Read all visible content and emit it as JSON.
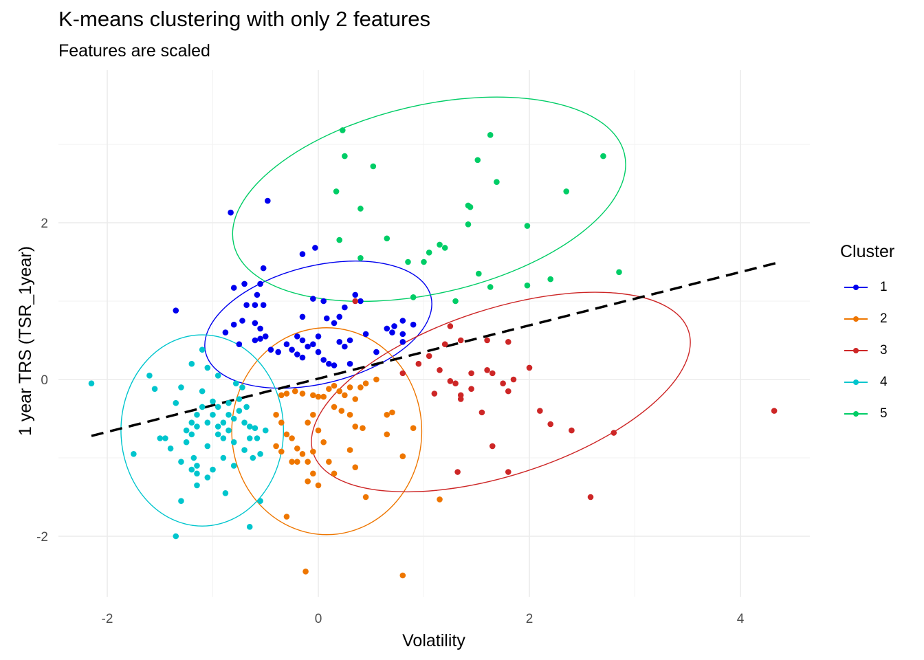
{
  "chart_data": {
    "type": "scatter",
    "title": "K-means clustering with only 2 features",
    "subtitle": "Features are scaled",
    "xlabel": "Volatility",
    "ylabel": "1 year TRS (TSR_1year)",
    "xlim": [
      -2.5,
      4.65
    ],
    "ylim": [
      -2.8,
      3.9
    ],
    "x_ticks": [
      -2,
      0,
      2,
      4
    ],
    "y_ticks": [
      -2,
      0,
      2
    ],
    "grid": true,
    "legend_position": "right",
    "legend_title": "Cluster",
    "trend_line": {
      "style": "dashed",
      "color": "#000000",
      "points": [
        [
          -2.15,
          -0.72
        ],
        [
          4.35,
          1.49
        ]
      ]
    },
    "series": [
      {
        "name": "1",
        "color": "#0000ee",
        "ellipse": {
          "center": [
            0.0,
            0.7
          ],
          "rx": 1.1,
          "ry": 0.75,
          "rotation_deg": -14
        },
        "points": [
          [
            -0.83,
            2.13
          ],
          [
            -0.48,
            2.28
          ],
          [
            -1.35,
            0.88
          ],
          [
            -0.8,
            1.17
          ],
          [
            -0.7,
            1.22
          ],
          [
            -0.55,
            1.22
          ],
          [
            -0.52,
            1.42
          ],
          [
            -0.58,
            1.08
          ],
          [
            -0.68,
            0.95
          ],
          [
            -0.6,
            0.95
          ],
          [
            -0.52,
            0.95
          ],
          [
            -0.72,
            0.75
          ],
          [
            -0.8,
            0.7
          ],
          [
            -0.6,
            0.72
          ],
          [
            -0.55,
            0.65
          ],
          [
            -0.88,
            0.6
          ],
          [
            -0.75,
            0.45
          ],
          [
            -0.6,
            0.5
          ],
          [
            -0.55,
            0.52
          ],
          [
            -0.5,
            0.55
          ],
          [
            -0.45,
            0.38
          ],
          [
            -0.38,
            0.35
          ],
          [
            -0.3,
            0.45
          ],
          [
            -0.25,
            0.38
          ],
          [
            -0.2,
            0.32
          ],
          [
            -0.15,
            0.28
          ],
          [
            -0.1,
            0.42
          ],
          [
            -0.05,
            0.45
          ],
          [
            0.0,
            0.35
          ],
          [
            0.05,
            0.25
          ],
          [
            -0.2,
            0.55
          ],
          [
            -0.15,
            0.5
          ],
          [
            -0.15,
            0.8
          ],
          [
            -0.15,
            1.6
          ],
          [
            -0.05,
            1.03
          ],
          [
            0.05,
            1.0
          ],
          [
            -0.03,
            1.68
          ],
          [
            0.0,
            0.55
          ],
          [
            0.1,
            0.2
          ],
          [
            0.15,
            0.18
          ],
          [
            0.08,
            0.78
          ],
          [
            0.15,
            0.72
          ],
          [
            0.2,
            0.8
          ],
          [
            0.25,
            0.92
          ],
          [
            0.2,
            0.48
          ],
          [
            0.25,
            0.42
          ],
          [
            0.3,
            0.5
          ],
          [
            0.35,
            1.08
          ],
          [
            0.4,
            1.0
          ],
          [
            0.45,
            0.58
          ],
          [
            0.55,
            0.35
          ],
          [
            0.3,
            0.2
          ],
          [
            0.65,
            0.65
          ],
          [
            0.7,
            0.6
          ],
          [
            0.72,
            0.68
          ],
          [
            0.8,
            0.58
          ],
          [
            0.8,
            0.75
          ],
          [
            0.8,
            0.48
          ],
          [
            0.9,
            0.7
          ]
        ]
      },
      {
        "name": "2",
        "color": "#ee7600",
        "ellipse": {
          "center": [
            0.08,
            -0.66
          ],
          "rx": 0.9,
          "ry": 1.32,
          "rotation_deg": 0
        },
        "points": [
          [
            -0.35,
            -0.2
          ],
          [
            -0.3,
            -0.18
          ],
          [
            -0.22,
            -0.15
          ],
          [
            -0.15,
            -0.18
          ],
          [
            -0.05,
            -0.2
          ],
          [
            0.0,
            -0.22
          ],
          [
            0.05,
            -0.22
          ],
          [
            0.1,
            -0.12
          ],
          [
            0.15,
            -0.08
          ],
          [
            0.2,
            -0.15
          ],
          [
            0.25,
            -0.2
          ],
          [
            0.3,
            -0.1
          ],
          [
            0.35,
            -0.25
          ],
          [
            0.4,
            -0.1
          ],
          [
            0.45,
            -0.05
          ],
          [
            0.55,
            0.0
          ],
          [
            0.65,
            -0.45
          ],
          [
            0.7,
            -0.42
          ],
          [
            0.15,
            -0.35
          ],
          [
            0.22,
            -0.4
          ],
          [
            0.3,
            -0.45
          ],
          [
            0.35,
            -0.6
          ],
          [
            0.42,
            -0.62
          ],
          [
            -0.4,
            -0.45
          ],
          [
            -0.35,
            -0.55
          ],
          [
            -0.3,
            -0.7
          ],
          [
            -0.25,
            -0.75
          ],
          [
            -0.2,
            -0.88
          ],
          [
            -0.15,
            -0.95
          ],
          [
            -0.05,
            -0.92
          ],
          [
            0.0,
            -0.65
          ],
          [
            0.05,
            -0.8
          ],
          [
            -0.4,
            -0.85
          ],
          [
            -0.35,
            -0.92
          ],
          [
            -0.25,
            -1.05
          ],
          [
            -0.1,
            -1.05
          ],
          [
            -0.05,
            -1.2
          ],
          [
            -0.1,
            -1.3
          ],
          [
            -0.2,
            -1.05
          ],
          [
            0.1,
            -1.05
          ],
          [
            0.15,
            -1.2
          ],
          [
            0.3,
            -0.9
          ],
          [
            0.35,
            -1.12
          ],
          [
            0.45,
            -1.5
          ],
          [
            -0.05,
            -0.45
          ],
          [
            -0.1,
            -0.55
          ],
          [
            -0.3,
            -1.75
          ],
          [
            0.65,
            -0.7
          ],
          [
            0.8,
            -0.98
          ],
          [
            0.9,
            -0.62
          ],
          [
            1.15,
            -1.53
          ],
          [
            -0.12,
            -2.45
          ],
          [
            0.8,
            -2.5
          ],
          [
            0.0,
            -1.35
          ]
        ]
      },
      {
        "name": "3",
        "color": "#cd2626",
        "ellipse": {
          "center": [
            1.73,
            -0.16
          ],
          "rx": 1.87,
          "ry": 1.06,
          "rotation_deg": -18
        },
        "points": [
          [
            0.35,
            1.0
          ],
          [
            1.25,
            0.68
          ],
          [
            1.35,
            0.5
          ],
          [
            1.2,
            0.45
          ],
          [
            1.6,
            0.5
          ],
          [
            1.8,
            0.48
          ],
          [
            0.8,
            0.08
          ],
          [
            0.95,
            0.2
          ],
          [
            1.05,
            0.3
          ],
          [
            1.15,
            0.12
          ],
          [
            1.25,
            -0.02
          ],
          [
            1.3,
            -0.05
          ],
          [
            1.35,
            -0.2
          ],
          [
            1.35,
            -0.25
          ],
          [
            1.45,
            -0.12
          ],
          [
            1.45,
            0.08
          ],
          [
            1.6,
            0.12
          ],
          [
            1.65,
            0.08
          ],
          [
            1.75,
            -0.05
          ],
          [
            1.8,
            -0.15
          ],
          [
            1.85,
            0.0
          ],
          [
            2.0,
            0.15
          ],
          [
            1.1,
            -0.18
          ],
          [
            1.55,
            -0.42
          ],
          [
            1.65,
            -0.85
          ],
          [
            1.32,
            -1.18
          ],
          [
            1.8,
            -1.18
          ],
          [
            2.1,
            -0.4
          ],
          [
            2.2,
            -0.57
          ],
          [
            2.4,
            -0.65
          ],
          [
            2.8,
            -0.68
          ],
          [
            2.58,
            -1.5
          ],
          [
            4.32,
            -0.4
          ]
        ]
      },
      {
        "name": "4",
        "color": "#00c5cd",
        "ellipse": {
          "center": [
            -1.1,
            -0.65
          ],
          "rx": 0.77,
          "ry": 1.22,
          "rotation_deg": 0
        },
        "points": [
          [
            -2.15,
            -0.05
          ],
          [
            -1.75,
            -0.95
          ],
          [
            -1.6,
            0.05
          ],
          [
            -1.55,
            -0.12
          ],
          [
            -1.5,
            -0.75
          ],
          [
            -1.45,
            -0.75
          ],
          [
            -1.4,
            -0.88
          ],
          [
            -1.35,
            -0.3
          ],
          [
            -1.3,
            -0.1
          ],
          [
            -1.3,
            -1.05
          ],
          [
            -1.25,
            -0.65
          ],
          [
            -1.25,
            -0.8
          ],
          [
            -1.2,
            -0.55
          ],
          [
            -1.2,
            -0.7
          ],
          [
            -1.18,
            -1.0
          ],
          [
            -1.15,
            -0.45
          ],
          [
            -1.15,
            -0.6
          ],
          [
            -1.15,
            -1.1
          ],
          [
            -1.15,
            -1.2
          ],
          [
            -1.1,
            -0.15
          ],
          [
            -1.1,
            -0.35
          ],
          [
            -1.05,
            -0.55
          ],
          [
            -1.05,
            -0.85
          ],
          [
            -1.0,
            -0.28
          ],
          [
            -1.0,
            -0.45
          ],
          [
            -0.95,
            -0.35
          ],
          [
            -0.95,
            -0.6
          ],
          [
            -0.95,
            -0.7
          ],
          [
            -0.9,
            -0.55
          ],
          [
            -0.9,
            -0.75
          ],
          [
            -0.9,
            -1.0
          ],
          [
            -0.85,
            -0.3
          ],
          [
            -0.85,
            -0.45
          ],
          [
            -0.85,
            -0.65
          ],
          [
            -0.8,
            -0.5
          ],
          [
            -0.8,
            -0.8
          ],
          [
            -0.8,
            -1.1
          ],
          [
            -0.75,
            -0.25
          ],
          [
            -0.75,
            -0.4
          ],
          [
            -0.7,
            -0.55
          ],
          [
            -0.7,
            -0.9
          ],
          [
            -0.68,
            -0.35
          ],
          [
            -0.65,
            -0.6
          ],
          [
            -0.65,
            -0.75
          ],
          [
            -0.62,
            -1.0
          ],
          [
            -0.6,
            -0.62
          ],
          [
            -0.58,
            -0.75
          ],
          [
            -0.55,
            -0.95
          ],
          [
            -0.5,
            -0.65
          ],
          [
            -0.72,
            -0.1
          ],
          [
            -0.78,
            -0.05
          ],
          [
            -1.05,
            -1.25
          ],
          [
            -1.15,
            -1.35
          ],
          [
            -1.2,
            -1.15
          ],
          [
            -1.3,
            -1.55
          ],
          [
            -1.0,
            -1.15
          ],
          [
            -0.88,
            -1.45
          ],
          [
            -0.65,
            -1.88
          ],
          [
            -0.55,
            -1.55
          ],
          [
            -1.35,
            -2.0
          ],
          [
            -1.1,
            0.38
          ],
          [
            -1.05,
            0.15
          ],
          [
            -1.2,
            0.2
          ],
          [
            -0.95,
            0.05
          ]
        ]
      },
      {
        "name": "5",
        "color": "#00cd66",
        "ellipse": {
          "center": [
            1.05,
            2.3
          ],
          "rx": 1.9,
          "ry": 1.2,
          "rotation_deg": -13
        },
        "points": [
          [
            0.23,
            3.18
          ],
          [
            0.25,
            2.85
          ],
          [
            0.52,
            2.72
          ],
          [
            0.17,
            2.4
          ],
          [
            0.4,
            2.18
          ],
          [
            1.63,
            3.12
          ],
          [
            1.51,
            2.8
          ],
          [
            1.69,
            2.52
          ],
          [
            2.7,
            2.85
          ],
          [
            2.35,
            2.4
          ],
          [
            1.42,
            2.22
          ],
          [
            1.44,
            2.2
          ],
          [
            1.42,
            1.98
          ],
          [
            1.98,
            1.96
          ],
          [
            0.2,
            1.78
          ],
          [
            0.65,
            1.8
          ],
          [
            1.15,
            1.72
          ],
          [
            1.2,
            1.68
          ],
          [
            1.05,
            1.62
          ],
          [
            0.85,
            1.5
          ],
          [
            1.0,
            1.5
          ],
          [
            0.4,
            1.55
          ],
          [
            1.52,
            1.35
          ],
          [
            1.63,
            1.18
          ],
          [
            1.98,
            1.2
          ],
          [
            2.2,
            1.28
          ],
          [
            2.85,
            1.37
          ],
          [
            0.9,
            1.05
          ],
          [
            1.3,
            1.0
          ]
        ]
      }
    ]
  }
}
